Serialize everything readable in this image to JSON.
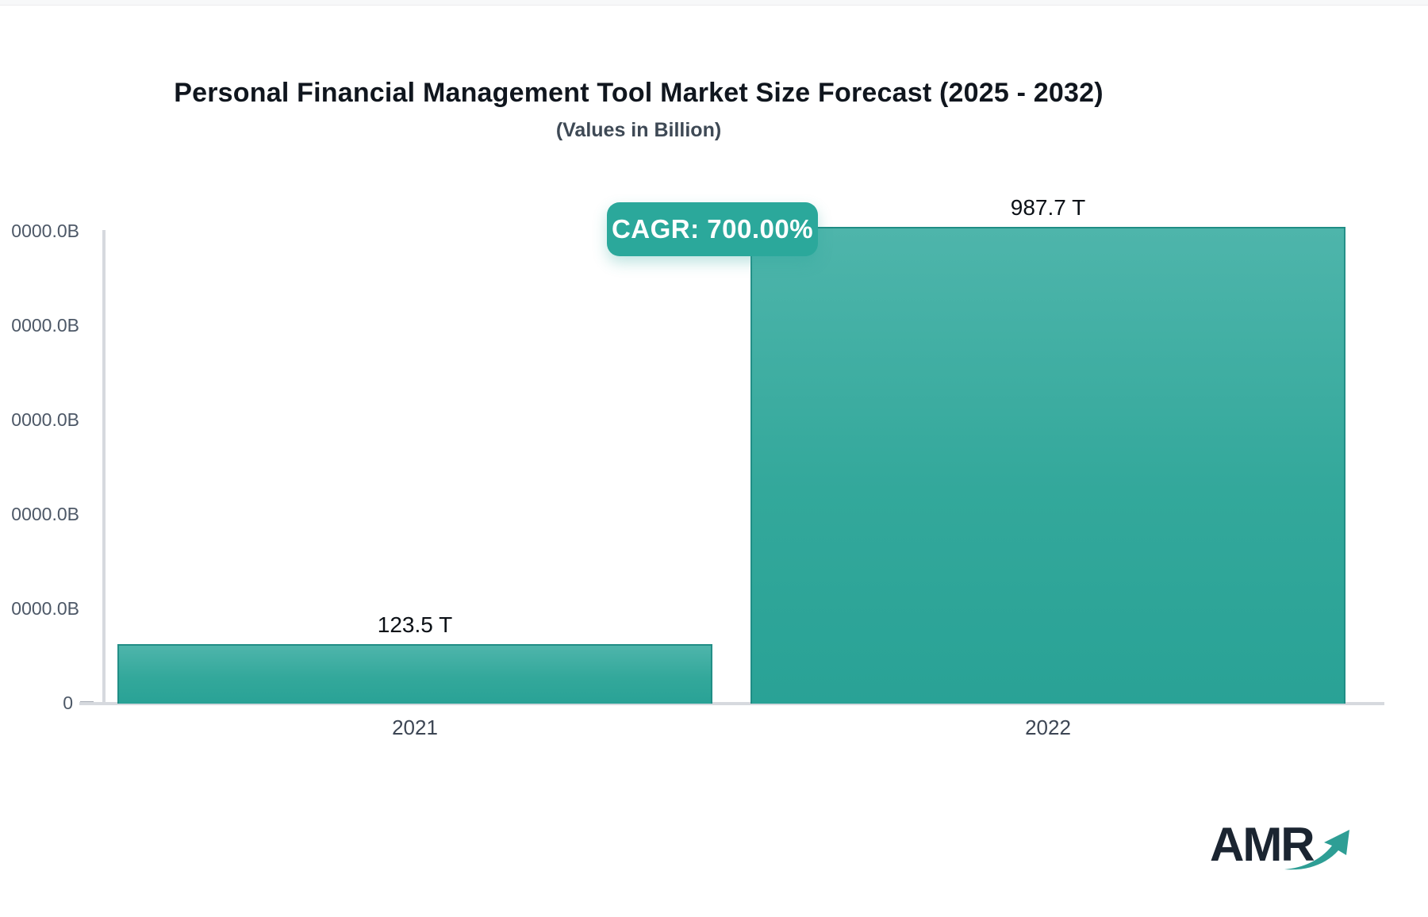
{
  "header": {
    "title": "Personal Financial Management Tool Market Size Forecast (2025 - 2032)",
    "subtitle": "(Values in Billion)"
  },
  "cagr_badge": {
    "text": "CAGR: 700.00%"
  },
  "chart_data": {
    "type": "bar",
    "title": "Personal Financial Management Tool Market Size Forecast (2025 - 2032)",
    "subtitle": "(Values in Billion)",
    "categories": [
      "2021",
      "2022"
    ],
    "values": [
      123500,
      987700
    ],
    "value_labels": [
      "123.5 T",
      "987.7 T"
    ],
    "cagr_label": "CAGR: 700.00%",
    "ylim": [
      0,
      990000
    ],
    "y_axis": {
      "tick_labels": [
        "0000.0B",
        "0000.0B",
        "0000.0B",
        "0000.0B",
        "0000.0B"
      ],
      "zero_label": "0"
    },
    "grid": false,
    "legend": false,
    "bar_color_top": "#4eb5ab",
    "bar_color_bottom": "#29a296"
  },
  "logo": {
    "text": "AMR"
  },
  "colors": {
    "accent_teal": "#2ba89b",
    "bar_gradient_top": "#4eb5ab",
    "bar_gradient_bottom": "#29a296",
    "axis_line": "#d6d9de",
    "axis_label": "#4d5867",
    "title_text": "#10161e",
    "logo_text": "#1b2531"
  }
}
